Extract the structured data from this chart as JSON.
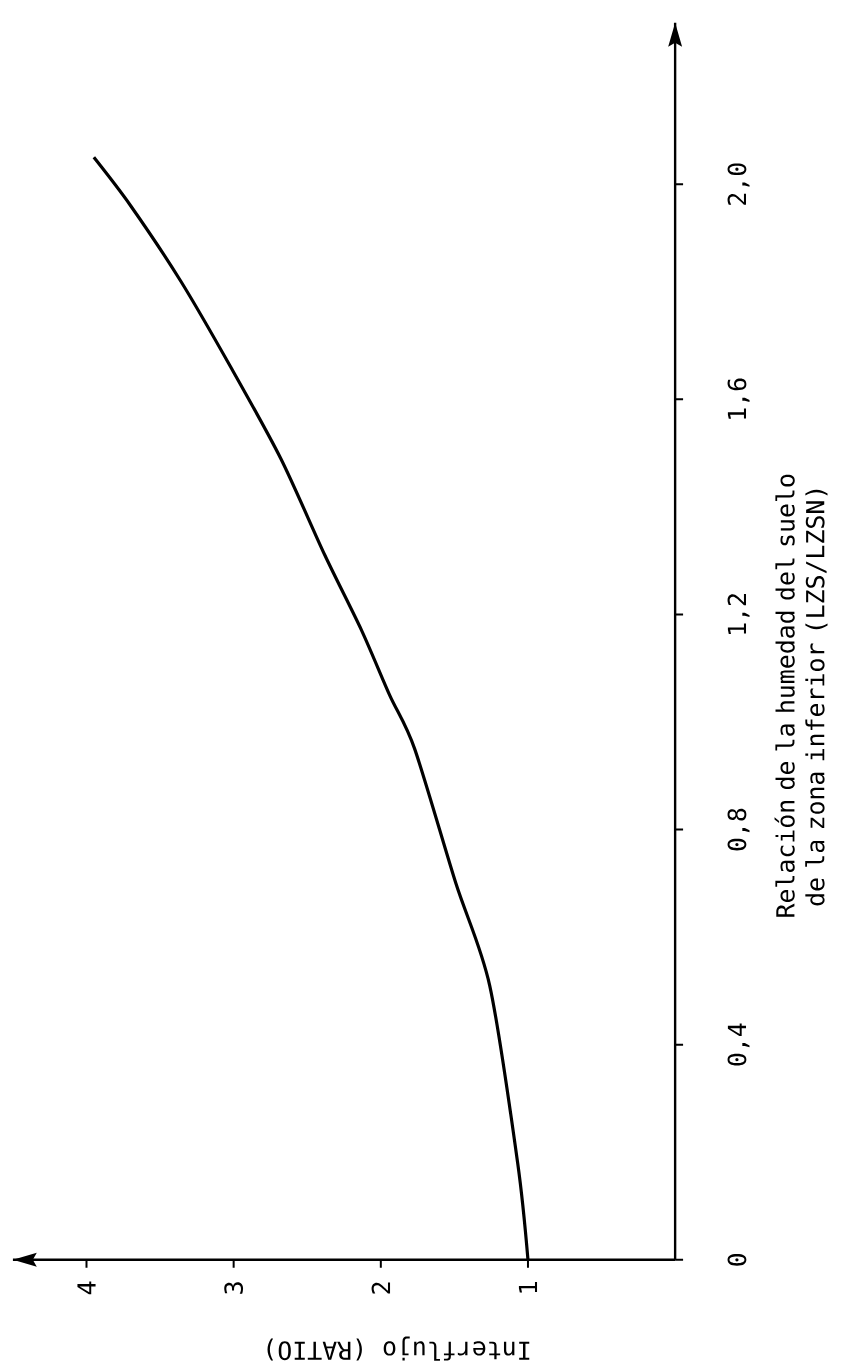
{
  "chart_data": {
    "type": "line",
    "xlabel": "Interflujo (RATIO)",
    "ylabel": "Relación de la humedad del suelo de la zona inferior (LZS/LZSN)",
    "x": [
      1.0,
      1.07,
      1.26,
      1.49,
      1.77,
      1.94,
      2.13,
      2.38,
      2.68,
      3.02,
      3.36,
      3.7,
      3.95
    ],
    "series": [
      {
        "color": "#000000",
        "values": [
          0,
          0.18,
          0.51,
          0.7,
          0.95,
          1.05,
          1.17,
          1.31,
          1.49,
          1.66,
          1.82,
          1.96,
          2.05
        ]
      }
    ],
    "xlim": [
      4.5,
      0
    ],
    "ylim": [
      0,
      2.3
    ],
    "xticks": [
      1,
      2,
      3,
      4
    ],
    "yticks": [
      {
        "value": 0,
        "label": "0"
      },
      {
        "value": 0.4,
        "label": "0,4"
      },
      {
        "value": 0.8,
        "label": "0,8"
      },
      {
        "value": 1.2,
        "label": "1,2"
      },
      {
        "value": 1.6,
        "label": "1,6"
      },
      {
        "value": 2.0,
        "label": "2,0"
      }
    ],
    "grid": false
  }
}
